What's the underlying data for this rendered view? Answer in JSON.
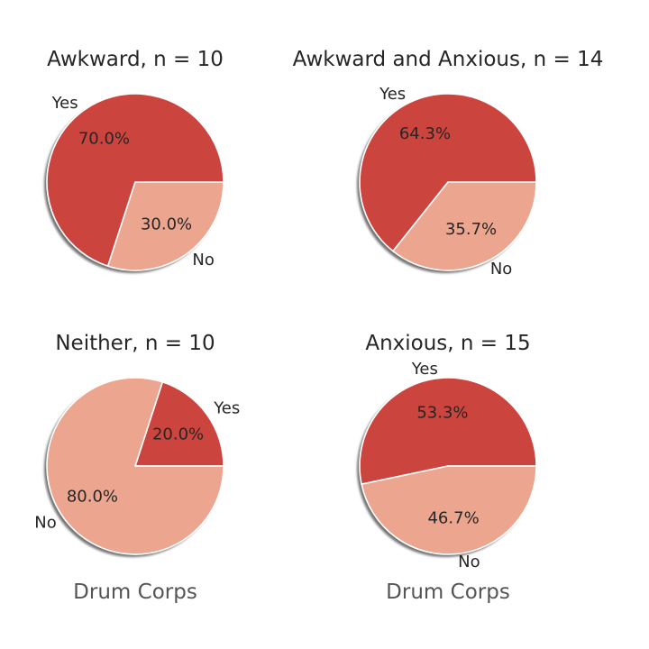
{
  "chart_data": [
    {
      "type": "pie",
      "title": "Awkward, n = 10",
      "labels": [
        "Yes",
        "No"
      ],
      "values": [
        70.0,
        30.0
      ],
      "pct_labels": [
        "70.0%",
        "30.0%"
      ],
      "colors": [
        "#cb443d",
        "#eca690"
      ],
      "start_angle_deg": 0,
      "shadow": true,
      "xlabel": ""
    },
    {
      "type": "pie",
      "title": "Awkward and Anxious, n = 14",
      "labels": [
        "Yes",
        "No"
      ],
      "values": [
        64.3,
        35.7
      ],
      "pct_labels": [
        "64.3%",
        "35.7%"
      ],
      "colors": [
        "#cb443d",
        "#eca690"
      ],
      "start_angle_deg": 0,
      "shadow": true,
      "xlabel": ""
    },
    {
      "type": "pie",
      "title": "Neither, n = 10",
      "labels": [
        "Yes",
        "No"
      ],
      "values": [
        20.0,
        80.0
      ],
      "pct_labels": [
        "20.0%",
        "80.0%"
      ],
      "colors": [
        "#cb443d",
        "#eca690"
      ],
      "start_angle_deg": 0,
      "shadow": true,
      "xlabel": "Drum Corps"
    },
    {
      "type": "pie",
      "title": "Anxious, n = 15",
      "labels": [
        "Yes",
        "No"
      ],
      "values": [
        53.3,
        46.7
      ],
      "pct_labels": [
        "53.3%",
        "46.7%"
      ],
      "colors": [
        "#cb443d",
        "#eca690"
      ],
      "start_angle_deg": 0,
      "shadow": true,
      "xlabel": "Drum Corps"
    }
  ]
}
